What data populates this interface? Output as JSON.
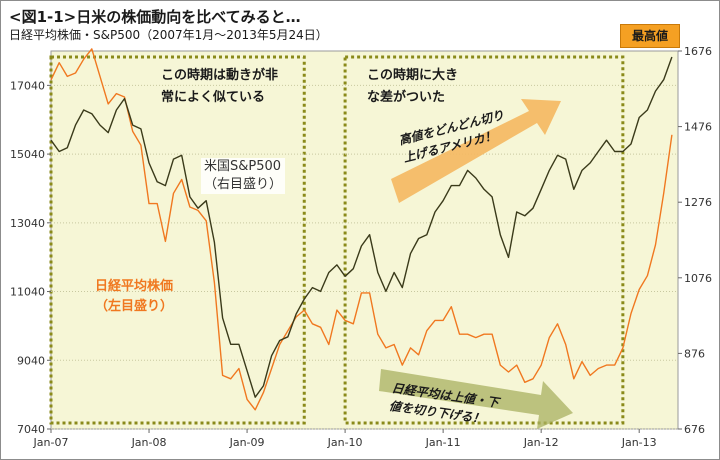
{
  "header": {
    "title": "<図1-1>日米の株価動向を比べてみると…",
    "subtitle": "日経平均株価・S&P500（2007年1月〜2013年5月24日）",
    "badge": "最高値"
  },
  "annotations": {
    "period1_line1": "この時期は動きが非",
    "period1_line2": "常によく似ている",
    "period2_line1": "この時期に大き",
    "period2_line2": "な差がついた",
    "us_label_line1": "米国S&P500",
    "us_label_line2": "（右目盛り）",
    "jp_label_line1": "日経平均株価",
    "jp_label_line2": "（左目盛り）",
    "up_arrow_line1": "高値をどんどん切り",
    "up_arrow_line2": "上げるアメリカ！",
    "down_arrow_line1": "日経平均は上値・下",
    "down_arrow_line2": "値を切り下げる！"
  },
  "colors": {
    "nikkei": "#f07820",
    "sp500": "#3a3a1a",
    "plot_bg": "#f6f6d6",
    "highlight_border": "#8a8a1a",
    "arrow": "#f5b860"
  },
  "chart_data": {
    "type": "line",
    "x_ticks": [
      "Jan-07",
      "Jan-08",
      "Jan-09",
      "Jan-10",
      "Jan-11",
      "Jan-12",
      "Jan-13"
    ],
    "x_range": [
      "2007-01",
      "2013-05"
    ],
    "y_left_ticks": [
      7040,
      9040,
      11040,
      13040,
      15040,
      17040
    ],
    "y_left_range": [
      7040,
      18040
    ],
    "y_right_ticks": [
      676,
      876,
      1076,
      1276,
      1476,
      1676
    ],
    "y_right_range": [
      676,
      1676
    ],
    "highlight_periods": [
      [
        "2007-01",
        "2009-08"
      ],
      [
        "2010-01",
        "2012-11"
      ]
    ],
    "series": [
      {
        "name": "日経平均株価",
        "axis": "left",
        "x": [
          "2007-01",
          "2007-02",
          "2007-03",
          "2007-04",
          "2007-05",
          "2007-06",
          "2007-07",
          "2007-08",
          "2007-09",
          "2007-10",
          "2007-11",
          "2007-12",
          "2008-01",
          "2008-02",
          "2008-03",
          "2008-04",
          "2008-05",
          "2008-06",
          "2008-07",
          "2008-08",
          "2008-09",
          "2008-10",
          "2008-11",
          "2008-12",
          "2009-01",
          "2009-02",
          "2009-03",
          "2009-04",
          "2009-05",
          "2009-06",
          "2009-07",
          "2009-08",
          "2009-09",
          "2009-10",
          "2009-11",
          "2009-12",
          "2010-01",
          "2010-02",
          "2010-03",
          "2010-04",
          "2010-05",
          "2010-06",
          "2010-07",
          "2010-08",
          "2010-09",
          "2010-10",
          "2010-11",
          "2010-12",
          "2011-01",
          "2011-02",
          "2011-03",
          "2011-04",
          "2011-05",
          "2011-06",
          "2011-07",
          "2011-08",
          "2011-09",
          "2011-10",
          "2011-11",
          "2011-12",
          "2012-01",
          "2012-02",
          "2012-03",
          "2012-04",
          "2012-05",
          "2012-06",
          "2012-07",
          "2012-08",
          "2012-09",
          "2012-10",
          "2012-11",
          "2012-12",
          "2013-01",
          "2013-02",
          "2013-03",
          "2013-04",
          "2013-05"
        ],
        "values": [
          17200,
          17700,
          17300,
          17400,
          17800,
          18100,
          17300,
          16500,
          16800,
          16700,
          15700,
          15300,
          13600,
          13600,
          12500,
          13900,
          14300,
          13500,
          13400,
          13100,
          11300,
          8600,
          8500,
          8800,
          7900,
          7600,
          8100,
          8800,
          9500,
          9900,
          10300,
          10500,
          10100,
          10000,
          9500,
          10500,
          10200,
          10100,
          11000,
          11000,
          9800,
          9400,
          9500,
          8900,
          9400,
          9200,
          9900,
          10200,
          10200,
          10600,
          9800,
          9800,
          9700,
          9800,
          9800,
          8900,
          8700,
          8900,
          8400,
          8500,
          8900,
          9700,
          10100,
          9500,
          8500,
          9000,
          8600,
          8800,
          8900,
          8900,
          9400,
          10400,
          11100,
          11500,
          12400,
          13900,
          15600
        ]
      },
      {
        "name": "米国S&P500",
        "axis": "right",
        "x": [
          "2007-01",
          "2007-02",
          "2007-03",
          "2007-04",
          "2007-05",
          "2007-06",
          "2007-07",
          "2007-08",
          "2007-09",
          "2007-10",
          "2007-11",
          "2007-12",
          "2008-01",
          "2008-02",
          "2008-03",
          "2008-04",
          "2008-05",
          "2008-06",
          "2008-07",
          "2008-08",
          "2008-09",
          "2008-10",
          "2008-11",
          "2008-12",
          "2009-01",
          "2009-02",
          "2009-03",
          "2009-04",
          "2009-05",
          "2009-06",
          "2009-07",
          "2009-08",
          "2009-09",
          "2009-10",
          "2009-11",
          "2009-12",
          "2010-01",
          "2010-02",
          "2010-03",
          "2010-04",
          "2010-05",
          "2010-06",
          "2010-07",
          "2010-08",
          "2010-09",
          "2010-10",
          "2010-11",
          "2010-12",
          "2011-01",
          "2011-02",
          "2011-03",
          "2011-04",
          "2011-05",
          "2011-06",
          "2011-07",
          "2011-08",
          "2011-09",
          "2011-10",
          "2011-11",
          "2011-12",
          "2012-01",
          "2012-02",
          "2012-03",
          "2012-04",
          "2012-05",
          "2012-06",
          "2012-07",
          "2012-08",
          "2012-09",
          "2012-10",
          "2012-11",
          "2012-12",
          "2013-01",
          "2013-02",
          "2013-03",
          "2013-04",
          "2013-05"
        ],
        "values": [
          1440,
          1410,
          1420,
          1480,
          1520,
          1510,
          1480,
          1460,
          1520,
          1550,
          1480,
          1470,
          1380,
          1330,
          1320,
          1390,
          1400,
          1290,
          1260,
          1280,
          1170,
          970,
          900,
          900,
          830,
          760,
          790,
          870,
          910,
          920,
          980,
          1020,
          1050,
          1040,
          1090,
          1110,
          1080,
          1100,
          1160,
          1190,
          1090,
          1040,
          1090,
          1050,
          1140,
          1180,
          1190,
          1250,
          1280,
          1320,
          1320,
          1360,
          1340,
          1310,
          1290,
          1190,
          1130,
          1250,
          1240,
          1260,
          1310,
          1360,
          1400,
          1390,
          1310,
          1360,
          1380,
          1410,
          1440,
          1410,
          1410,
          1430,
          1500,
          1520,
          1570,
          1600,
          1660
        ]
      }
    ]
  }
}
